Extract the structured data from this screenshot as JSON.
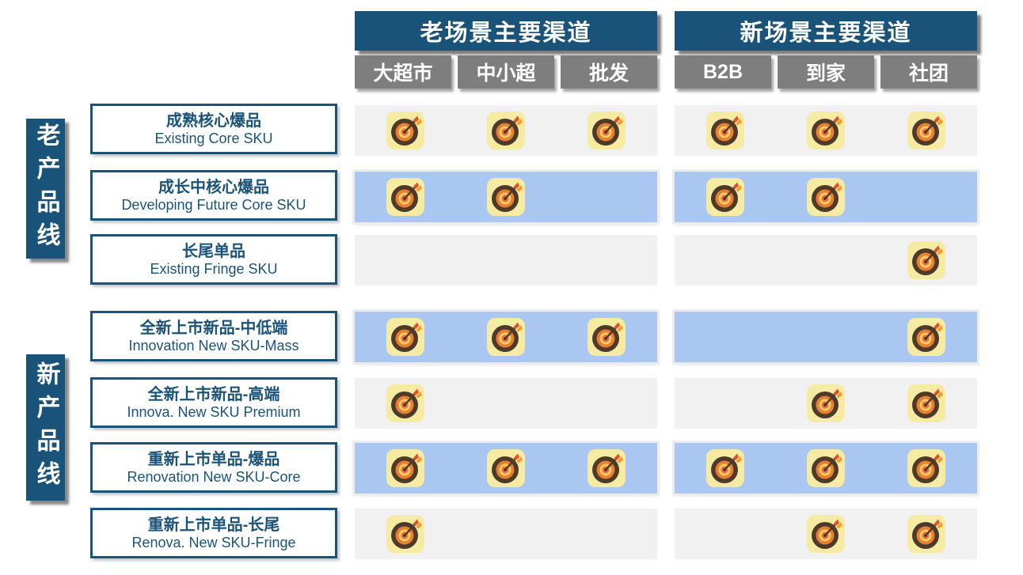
{
  "slide": {
    "background": "#FFFFFF"
  },
  "colors": {
    "primary_blue": "#1A537A",
    "header_text": "#FFFFFF",
    "column_gray": "#7E7E7E",
    "band_gray": "#F1F1F1",
    "band_blue": "#A9C7F0",
    "label_text": "#1A537A"
  },
  "icon": {
    "name": "target-dart-icon",
    "tile": "#F5EBA3",
    "ring_outer": "#4E3A2B",
    "ring_mid": "#E8802F",
    "ring_inner": "#F7CE6B",
    "bullseye": "#F2703B",
    "dart_shaft": "#4E3A2B",
    "fletch_red": "#E0512B",
    "fletch_orange": "#F59D2C"
  },
  "channel_groups": [
    {
      "title": "老场景主要渠道",
      "columns": [
        "大超市",
        "中小超",
        "批发"
      ]
    },
    {
      "title": "新场景主要渠道",
      "columns": [
        "B2B",
        "到家",
        "社团"
      ]
    }
  ],
  "product_lines": [
    {
      "label": "老产品线"
    },
    {
      "label": "新产品线"
    }
  ],
  "matrix": {
    "rows": [
      {
        "zh": "成熟核心爆品",
        "en": "Existing Core SKU",
        "band": "gray",
        "old_channels": [
          1,
          1,
          1
        ],
        "new_channels": [
          1,
          1,
          1
        ]
      },
      {
        "zh": "成长中核心爆品",
        "en": "Developing Future Core SKU",
        "band": "blue",
        "old_channels": [
          1,
          1,
          0
        ],
        "new_channels": [
          1,
          1,
          0
        ]
      },
      {
        "zh": "长尾单品",
        "en": "Existing Fringe SKU",
        "band": "gray",
        "old_channels": [
          0,
          0,
          0
        ],
        "new_channels": [
          0,
          0,
          1
        ]
      },
      {
        "zh": "全新上市新品-中低端",
        "en": "Innovation New SKU-Mass",
        "band": "blue",
        "old_channels": [
          1,
          1,
          1
        ],
        "new_channels": [
          0,
          0,
          1
        ]
      },
      {
        "zh": "全新上市新品-高端",
        "en": "Innova. New SKU Premium",
        "band": "gray",
        "old_channels": [
          1,
          0,
          0
        ],
        "new_channels": [
          0,
          1,
          1
        ]
      },
      {
        "zh": "重新上市单品-爆品",
        "en": "Renovation New SKU-Core",
        "band": "blue",
        "old_channels": [
          1,
          1,
          1
        ],
        "new_channels": [
          1,
          1,
          1
        ]
      },
      {
        "zh": "重新上市单品-长尾",
        "en": "Renova. New SKU-Fringe",
        "band": "gray",
        "old_channels": [
          1,
          0,
          0
        ],
        "new_channels": [
          0,
          1,
          1
        ]
      }
    ]
  }
}
